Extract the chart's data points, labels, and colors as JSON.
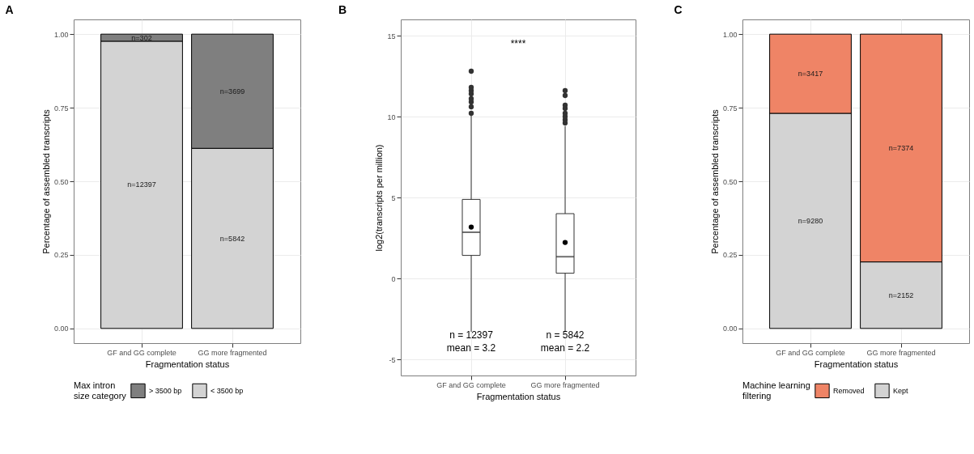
{
  "chart_data": [
    {
      "type": "bar",
      "title": "A",
      "stacked": true,
      "categories": [
        "GF and GG complete",
        "GG more fragmented"
      ],
      "xlabel": "Fragmentation status",
      "ylabel": "Percentage of assembled transcripts",
      "legend_title": "Max intron\nsize category",
      "legend": "bottom",
      "grid": true,
      "series": [
        {
          "name": "< 3500 bp",
          "color": "#d3d3d3",
          "values": [
            0.976,
            0.612
          ]
        },
        {
          "name": "> 3500 bp",
          "color": "#7f7f7f",
          "values": [
            0.024,
            0.388
          ]
        }
      ],
      "annotations": [
        "n=12397",
        "n=5842",
        "n=302",
        "n=3699"
      ],
      "ylim": [
        -0.05,
        1.05
      ],
      "yticks": [
        {
          "value": 0,
          "label": "0.00"
        },
        {
          "value": 0.25,
          "label": "0.25"
        },
        {
          "value": 0.5,
          "label": "0.50"
        },
        {
          "value": 0.75,
          "label": "0.75"
        },
        {
          "value": 1,
          "label": "1.00"
        }
      ]
    },
    {
      "type": "box",
      "title": "B",
      "categories": [
        "GF and GG complete",
        "GG more fragmented"
      ],
      "xlabel": "Fragmentation status",
      "ylabel": "log2(transcripts per million)",
      "grid": true,
      "boxes": [
        {
          "low": -3.3,
          "q1": 1.42,
          "median": 2.85,
          "q3": 4.88,
          "high": 10.1,
          "mean": 3.17,
          "outliers": [
            10.2,
            10.6,
            10.9,
            11.1,
            11.4,
            11.6,
            11.8,
            12.8
          ]
        },
        {
          "low": -3.3,
          "q1": 0.32,
          "median": 1.34,
          "q3": 4.0,
          "high": 9.4,
          "mean": 2.22,
          "outliers": [
            9.6,
            9.8,
            10.0,
            10.2,
            10.5,
            10.7,
            11.3,
            11.6
          ]
        }
      ],
      "ylim": [
        -6,
        16
      ],
      "yticks": [
        -5,
        0,
        5,
        10,
        15
      ],
      "annotations": [
        "****",
        "n = 12397",
        "mean = 3.2",
        "n = 5842",
        "mean = 2.2"
      ]
    },
    {
      "type": "bar",
      "title": "C",
      "stacked": true,
      "categories": [
        "GF and GG complete",
        "GG more fragmented"
      ],
      "xlabel": "Fragmentation status",
      "ylabel": "Percentage of assembled transcripts",
      "legend_title": "Machine learning\nfiltering",
      "legend": "bottom",
      "grid": true,
      "series": [
        {
          "name": "Kept",
          "color": "#d3d3d3",
          "values": [
            0.731,
            0.226
          ]
        },
        {
          "name": "Removed",
          "color": "#ef8466",
          "values": [
            0.269,
            0.774
          ]
        }
      ],
      "annotations": [
        "n=9280",
        "n=2152",
        "n=3417",
        "n=7374"
      ],
      "ylim": [
        -0.05,
        1.05
      ],
      "yticks": [
        {
          "value": 0,
          "label": "0.00"
        },
        {
          "value": 0.25,
          "label": "0.25"
        },
        {
          "value": 0.5,
          "label": "0.50"
        },
        {
          "value": 0.75,
          "label": "0.75"
        },
        {
          "value": 1,
          "label": "1.00"
        }
      ]
    }
  ]
}
